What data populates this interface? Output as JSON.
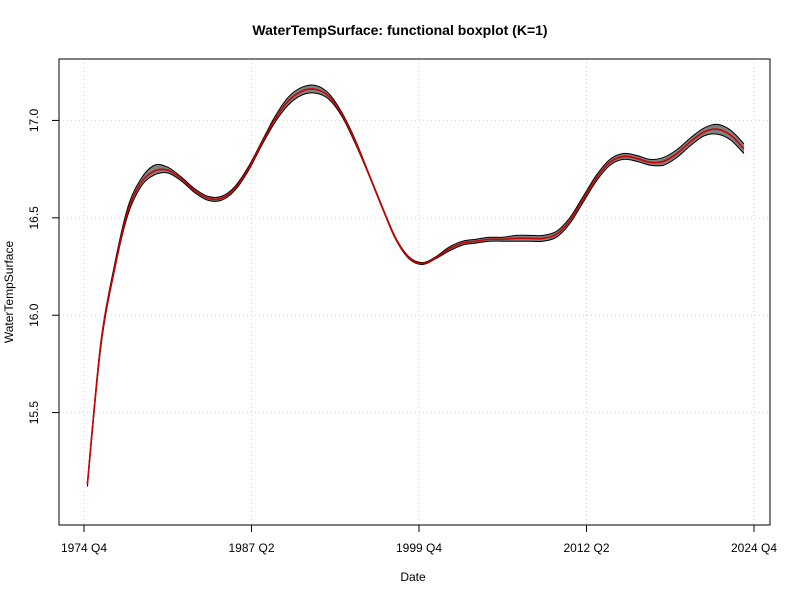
{
  "chart_data": {
    "type": "line",
    "title": "WaterTempSurface: functional boxplot (K=1)",
    "xlabel": "Date",
    "ylabel": "WaterTempSurface",
    "xlim": [
      1974.75,
      2024.75
    ],
    "ylim": [
      15.0,
      17.3
    ],
    "x_ticks": [
      "1974 Q4",
      "1987 Q2",
      "1999 Q4",
      "2012 Q2",
      "2024 Q4"
    ],
    "x_tick_values": [
      1974.75,
      1987.25,
      1999.75,
      2012.25,
      2024.75
    ],
    "y_ticks": [
      "15.5",
      "16.0",
      "16.5",
      "17.0"
    ],
    "y_tick_values": [
      15.5,
      16.0,
      16.5,
      17.0
    ],
    "grid": true,
    "colors": {
      "envelope_fill": "#808080",
      "envelope_edge": "#000000",
      "median": "#cc0000",
      "grid": "#d3d3d3"
    },
    "series": [
      {
        "role": "envelope",
        "x": [
          1975.0,
          1976.0,
          1977.0,
          1978.0,
          1979.0,
          1980.0,
          1981.0,
          1982.0,
          1983.0,
          1984.0,
          1985.0,
          1986.0,
          1987.0,
          1988.0,
          1989.0,
          1990.0,
          1991.0,
          1992.0,
          1993.0,
          1994.0,
          1995.0,
          1996.0,
          1997.0,
          1998.0,
          1999.0,
          2000.0,
          2001.0,
          2002.0,
          2003.0,
          2004.0,
          2005.0,
          2006.0,
          2007.0,
          2008.0,
          2009.0,
          2010.0,
          2011.0,
          2012.0,
          2013.0,
          2014.0,
          2015.0,
          2016.0,
          2017.0,
          2018.0,
          2019.0,
          2020.0,
          2021.0,
          2022.0,
          2023.0,
          2024.0
        ],
        "upper": [
          15.14,
          15.86,
          16.25,
          16.55,
          16.7,
          16.77,
          16.76,
          16.71,
          16.65,
          16.61,
          16.61,
          16.66,
          16.76,
          16.89,
          17.02,
          17.12,
          17.17,
          17.18,
          17.14,
          17.04,
          16.9,
          16.73,
          16.56,
          16.4,
          16.3,
          16.27,
          16.3,
          16.35,
          16.38,
          16.39,
          16.4,
          16.4,
          16.41,
          16.41,
          16.41,
          16.43,
          16.5,
          16.61,
          16.72,
          16.8,
          16.83,
          16.82,
          16.8,
          16.81,
          16.85,
          16.91,
          16.96,
          16.98,
          16.95,
          16.88
        ],
        "lower": [
          15.12,
          15.83,
          16.22,
          16.51,
          16.66,
          16.72,
          16.73,
          16.69,
          16.63,
          16.59,
          16.59,
          16.64,
          16.74,
          16.87,
          16.99,
          17.08,
          17.13,
          17.14,
          17.11,
          17.02,
          16.88,
          16.72,
          16.55,
          16.39,
          16.29,
          16.26,
          16.29,
          16.33,
          16.36,
          16.37,
          16.38,
          16.38,
          16.38,
          16.38,
          16.38,
          16.4,
          16.47,
          16.58,
          16.69,
          16.77,
          16.8,
          16.79,
          16.77,
          16.77,
          16.81,
          16.87,
          16.92,
          16.93,
          16.9,
          16.83
        ]
      },
      {
        "role": "median",
        "x": [
          1975.0,
          1976.0,
          1977.0,
          1978.0,
          1979.0,
          1980.0,
          1981.0,
          1982.0,
          1983.0,
          1984.0,
          1985.0,
          1986.0,
          1987.0,
          1988.0,
          1989.0,
          1990.0,
          1991.0,
          1992.0,
          1993.0,
          1994.0,
          1995.0,
          1996.0,
          1997.0,
          1998.0,
          1999.0,
          2000.0,
          2001.0,
          2002.0,
          2003.0,
          2004.0,
          2005.0,
          2006.0,
          2007.0,
          2008.0,
          2009.0,
          2010.0,
          2011.0,
          2012.0,
          2013.0,
          2014.0,
          2015.0,
          2016.0,
          2017.0,
          2018.0,
          2019.0,
          2020.0,
          2021.0,
          2022.0,
          2023.0,
          2024.0
        ],
        "values": [
          15.13,
          15.85,
          16.23,
          16.53,
          16.68,
          16.74,
          16.745,
          16.7,
          16.64,
          16.6,
          16.6,
          16.65,
          16.75,
          16.88,
          17.005,
          17.1,
          17.15,
          17.16,
          17.125,
          17.03,
          16.89,
          16.725,
          16.555,
          16.395,
          16.295,
          16.265,
          16.295,
          16.34,
          16.37,
          16.38,
          16.39,
          16.39,
          16.395,
          16.395,
          16.395,
          16.415,
          16.485,
          16.595,
          16.705,
          16.785,
          16.815,
          16.805,
          16.785,
          16.79,
          16.83,
          16.89,
          16.94,
          16.955,
          16.925,
          16.855
        ]
      }
    ]
  }
}
